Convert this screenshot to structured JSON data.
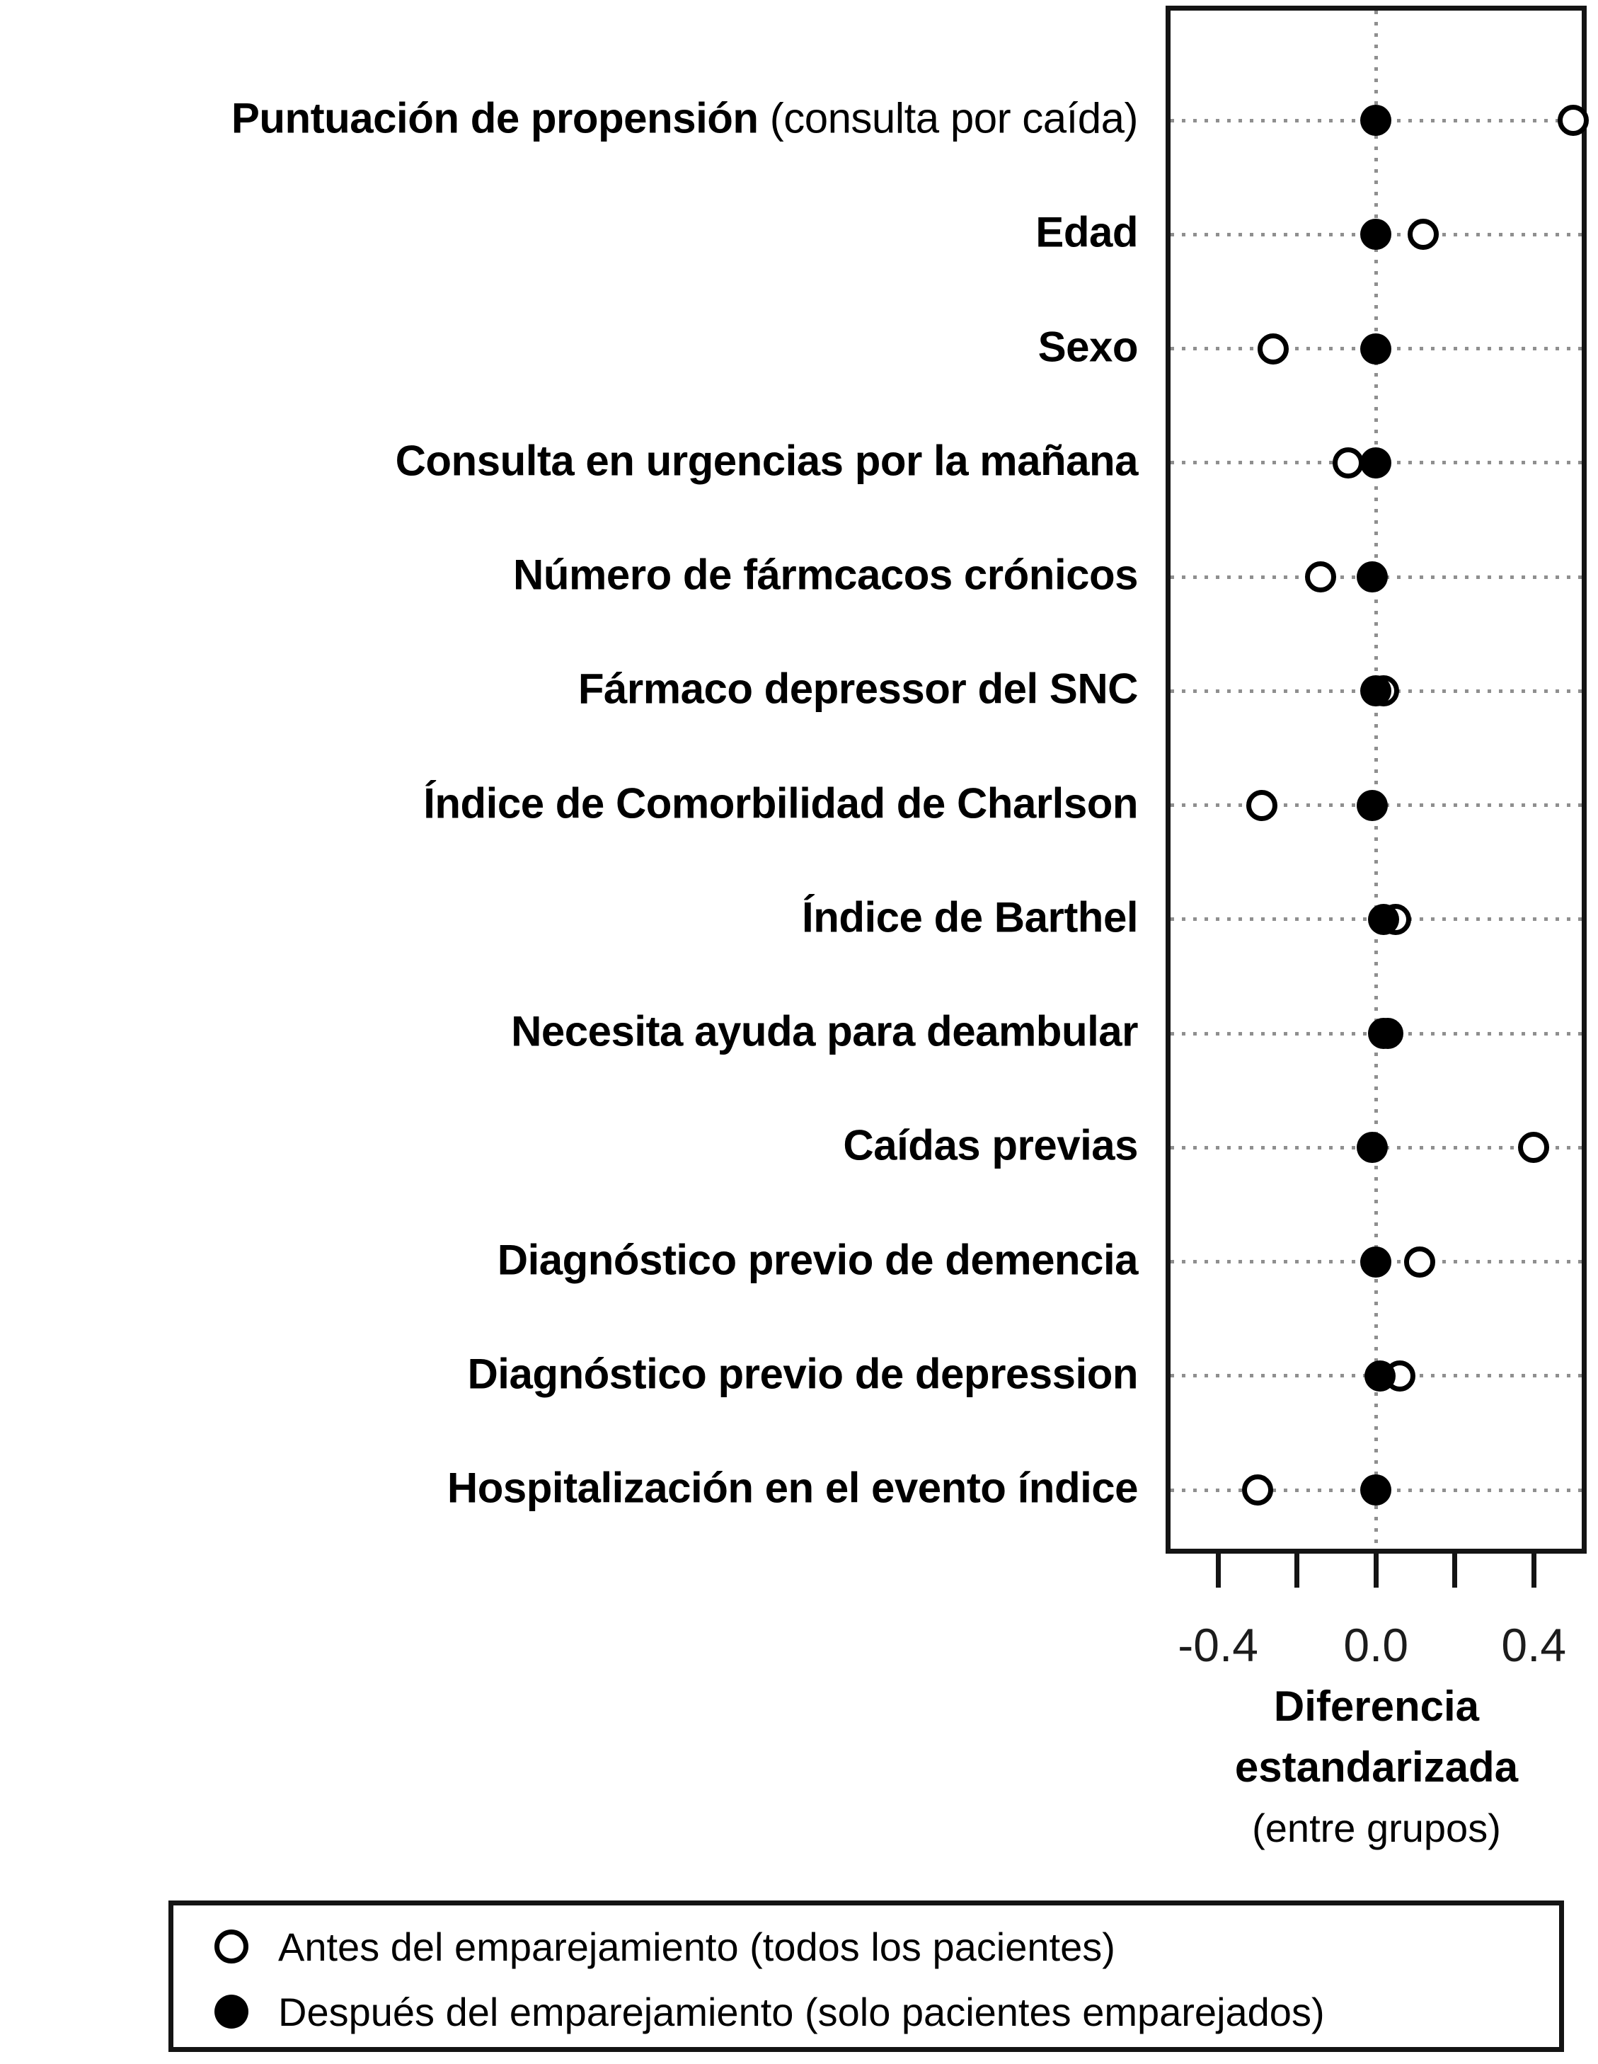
{
  "chart_data": {
    "type": "scatter",
    "title": "",
    "orientation": "dot-plot (Love plot), categories on y-axis",
    "xlabel_lines": [
      "Diferencia",
      "estandarizada",
      "(entre grupos)"
    ],
    "xlim": [
      -0.533,
      0.534
    ],
    "grid": "dotted horizontal line per category and dotted vertical line at 0",
    "x_ticks": [
      {
        "value": -0.4,
        "label": "-0.4"
      },
      {
        "value": -0.2,
        "label": ""
      },
      {
        "value": 0.0,
        "label": "0.0"
      },
      {
        "value": 0.2,
        "label": ""
      },
      {
        "value": 0.4,
        "label": "0.4"
      }
    ],
    "categories": [
      {
        "bold": "Puntuación de propensión",
        "normal": " (consulta por caída)"
      },
      {
        "bold": "Edad",
        "normal": ""
      },
      {
        "bold": "Sexo",
        "normal": ""
      },
      {
        "bold": "Consulta en urgencias por la mañana",
        "normal": ""
      },
      {
        "bold": "Número de fármcacos crónicos",
        "normal": ""
      },
      {
        "bold": "Fármaco depressor del SNC",
        "normal": ""
      },
      {
        "bold": "Índice de Comorbilidad de Charlson",
        "normal": ""
      },
      {
        "bold": "Índice de Barthel",
        "normal": ""
      },
      {
        "bold": "Necesita ayuda para deambular",
        "normal": ""
      },
      {
        "bold": "Caídas previas",
        "normal": ""
      },
      {
        "bold": "Diagnóstico previo de demencia",
        "normal": ""
      },
      {
        "bold": "Diagnóstico previo de depression",
        "normal": ""
      },
      {
        "bold": "Hospitalización en el evento índice",
        "normal": ""
      }
    ],
    "series": [
      {
        "name": "Antes del emparejamiento (todos los pacientes)",
        "marker": "open-circle",
        "values": [
          0.5,
          0.12,
          -0.26,
          -0.07,
          -0.14,
          0.02,
          -0.29,
          0.05,
          0.03,
          0.4,
          0.11,
          0.06,
          -0.3
        ]
      },
      {
        "name": "Después del emparejamiento (solo pacientes emparejados)",
        "marker": "filled-circle",
        "values": [
          0.0,
          0.0,
          0.0,
          0.0,
          -0.01,
          0.0,
          -0.01,
          0.02,
          0.02,
          -0.01,
          0.0,
          0.01,
          0.0
        ]
      }
    ],
    "legend_position": "bottom-left framed box"
  },
  "colors": {
    "marker": "#000000",
    "grid_dots": "#8f8f8f",
    "frame": "#141414",
    "background": "#ffffff"
  }
}
